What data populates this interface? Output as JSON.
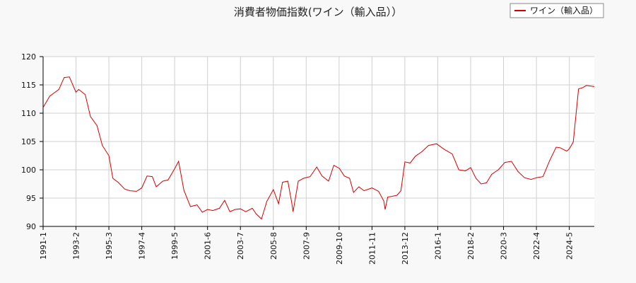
{
  "colors": {
    "background": "#f8f8f8",
    "plot_background": "#ffffff",
    "grid": "#cfcfcf",
    "axis": "#000000",
    "series": "#d40000"
  },
  "chart_data": {
    "type": "line",
    "title": "消費者物価指数(ワイン（輸入品））",
    "xlabel": "",
    "ylabel": "",
    "ylim": [
      90,
      120
    ],
    "yticks": [
      90,
      95,
      100,
      105,
      110,
      115,
      120
    ],
    "xlim": [
      "1991-1",
      "2025-12"
    ],
    "xticks": [
      "1991-1",
      "1993-2",
      "1995-3",
      "1997-4",
      "1999-5",
      "2001-6",
      "2003-7",
      "2005-8",
      "2007-9",
      "2009-10",
      "2011-11",
      "2013-12",
      "2016-1",
      "2018-2",
      "2020-3",
      "2022-4",
      "2024-5"
    ],
    "grid": true,
    "legend_position": "top-right",
    "series": [
      {
        "name": "ワイン（輸入品）",
        "x": [
          "1991-1",
          "1991-6",
          "1992-1",
          "1992-5",
          "1992-9",
          "1993-2",
          "1993-4",
          "1993-9",
          "1994-1",
          "1994-6",
          "1994-10",
          "1995-3",
          "1995-6",
          "1995-10",
          "1996-3",
          "1996-7",
          "1996-12",
          "1997-4",
          "1997-8",
          "1997-12",
          "1998-3",
          "1998-8",
          "1998-12",
          "1999-5",
          "1999-8",
          "1999-12",
          "2000-5",
          "2000-10",
          "2001-2",
          "2001-6",
          "2001-10",
          "2002-3",
          "2002-7",
          "2002-11",
          "2003-3",
          "2003-7",
          "2003-11",
          "2004-4",
          "2004-7",
          "2004-11",
          "2005-3",
          "2005-8",
          "2005-12",
          "2006-3",
          "2006-7",
          "2006-10",
          "2006-11",
          "2007-3",
          "2007-7",
          "2007-12",
          "2008-5",
          "2008-9",
          "2009-2",
          "2009-6",
          "2009-9",
          "2009-10",
          "2010-2",
          "2010-6",
          "2010-9",
          "2011-1",
          "2011-5",
          "2011-11",
          "2012-4",
          "2012-8",
          "2012-9",
          "2012-11",
          "2013-2",
          "2013-6",
          "2013-9",
          "2013-12",
          "2014-4",
          "2014-8",
          "2015-1",
          "2015-6",
          "2015-12",
          "2016-6",
          "2016-12",
          "2017-5",
          "2017-10",
          "2018-2",
          "2018-6",
          "2018-10",
          "2019-2",
          "2019-6",
          "2019-11",
          "2020-4",
          "2020-9",
          "2021-2",
          "2021-7",
          "2021-12",
          "2022-4",
          "2022-9",
          "2023-2",
          "2023-7",
          "2023-10",
          "2024-3",
          "2024-5",
          "2024-8",
          "2024-12",
          "2025-3",
          "2025-6",
          "2025-9",
          "2025-12"
        ],
        "values": [
          111,
          113,
          114.2,
          116.3,
          116.4,
          113.7,
          114.2,
          113.3,
          109.4,
          107.8,
          104.3,
          102.5,
          98.5,
          97.8,
          96.6,
          96.3,
          96.2,
          96.8,
          98.9,
          98.8,
          97,
          98,
          98.2,
          100.2,
          101.5,
          96.4,
          93.5,
          93.8,
          92.5,
          93,
          92.8,
          93.2,
          94.6,
          92.6,
          93,
          93.1,
          92.6,
          93.2,
          92.2,
          91.3,
          94.4,
          96.5,
          94,
          97.8,
          98,
          94.2,
          92.6,
          98,
          98.5,
          98.8,
          100.5,
          98.9,
          98,
          100.8,
          100.4,
          100.3,
          98.9,
          98.5,
          96,
          97,
          96.3,
          96.8,
          96.2,
          94.5,
          93,
          95.2,
          95.3,
          95.5,
          96.3,
          101.4,
          101.2,
          102.4,
          103.2,
          104.3,
          104.6,
          103.6,
          102.8,
          100,
          99.8,
          100.4,
          98.5,
          97.5,
          97.7,
          99.2,
          100,
          101.3,
          101.5,
          99.7,
          98.6,
          98.3,
          98.6,
          98.8,
          101.6,
          104,
          103.9,
          103.3,
          103.7,
          104.9,
          114.3,
          114.5,
          114.9,
          114.8,
          114.7
        ]
      }
    ]
  }
}
